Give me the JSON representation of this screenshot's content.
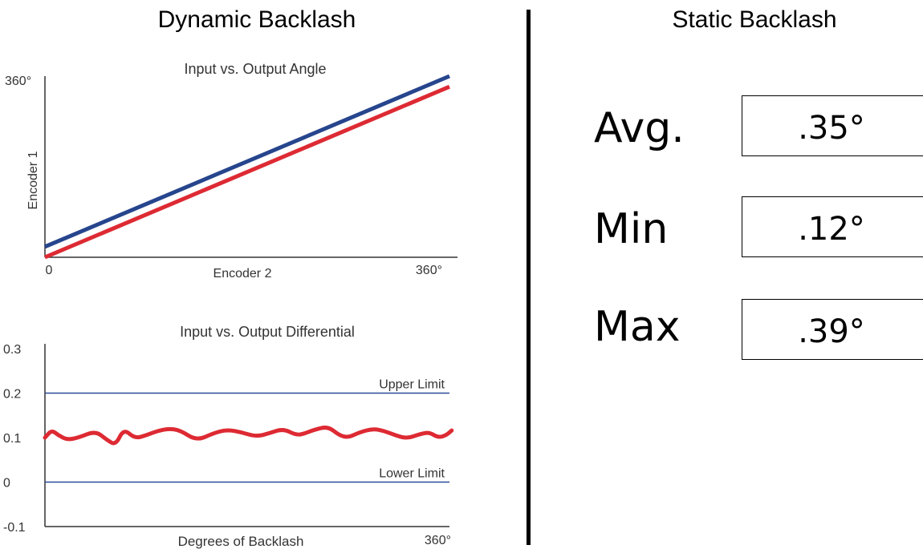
{
  "chart_data": [
    {
      "type": "line",
      "title": "Input vs. Output Angle",
      "xlabel": "Encoder 2",
      "ylabel": "Encoder 1",
      "x_tick_labels": [
        "0",
        "360°"
      ],
      "y_tick_labels": [
        "360°"
      ],
      "xlim": [
        0,
        360
      ],
      "ylim": [
        0,
        360
      ],
      "series": [
        {
          "color": "#26458d",
          "x": [
            0,
            360
          ],
          "y": [
            21,
            360
          ]
        },
        {
          "color": "#dd2a33",
          "x": [
            0,
            360
          ],
          "y": [
            0,
            339
          ]
        }
      ]
    },
    {
      "type": "line",
      "title": "Input vs. Output Differential",
      "xlabel": "Degrees of Backlash",
      "x_tick_labels": [
        "360°"
      ],
      "y_tick_labels": [
        "0.3",
        "0.2",
        "0.1",
        "0",
        "-0.1"
      ],
      "xlim": [
        0,
        360
      ],
      "ylim": [
        -0.1,
        0.3
      ],
      "grid": false,
      "reference_lines": [
        {
          "label": "Upper Limit",
          "y": 0.2,
          "color": "#2b4a9a"
        },
        {
          "label": "Lower Limit",
          "y": 0.0,
          "color": "#2b4a9a"
        }
      ],
      "series": [
        {
          "color": "#dd2a33",
          "x": [
            0,
            6,
            12,
            20,
            30,
            45,
            55,
            63,
            70,
            80,
            90,
            100,
            110,
            120,
            135,
            150,
            162,
            175,
            188,
            200,
            212,
            224,
            232,
            240,
            252,
            262,
            270,
            280,
            292,
            302,
            312,
            322,
            334,
            342,
            350,
            357,
            362
          ],
          "y": [
            0.1,
            0.117,
            0.105,
            0.095,
            0.1,
            0.115,
            0.095,
            0.083,
            0.12,
            0.098,
            0.105,
            0.115,
            0.12,
            0.117,
            0.093,
            0.11,
            0.118,
            0.112,
            0.102,
            0.11,
            0.12,
            0.105,
            0.11,
            0.118,
            0.125,
            0.105,
            0.1,
            0.112,
            0.12,
            0.115,
            0.105,
            0.098,
            0.108,
            0.112,
            0.1,
            0.105,
            0.116
          ]
        }
      ]
    }
  ],
  "page": {
    "left_title": "Dynamic Backlash",
    "right_title": "Static Backlash"
  },
  "static_backlash": [
    {
      "label": "Avg.",
      "value": ".35°"
    },
    {
      "label": "Min",
      "value": ".12°"
    },
    {
      "label": "Max",
      "value": ".39°"
    }
  ]
}
